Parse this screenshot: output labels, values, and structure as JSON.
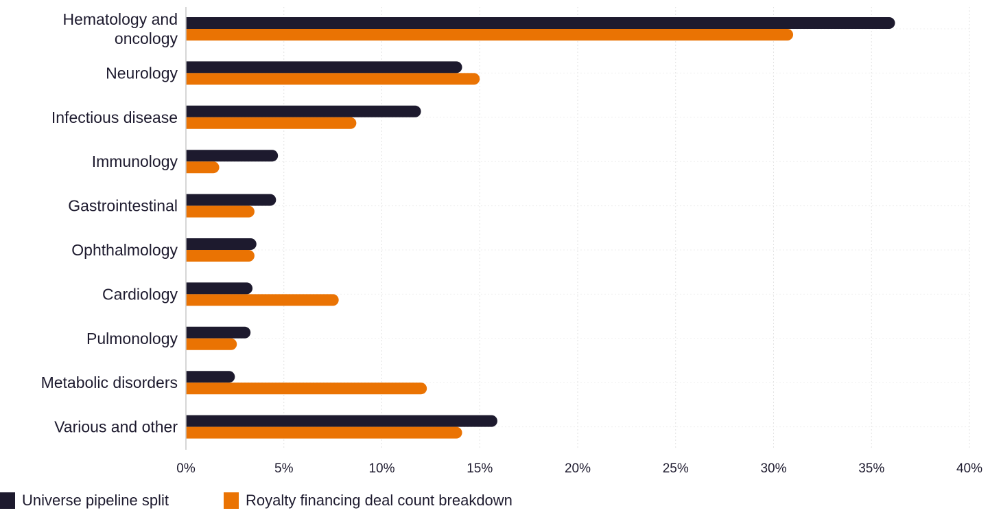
{
  "chart_data": {
    "type": "bar",
    "orientation": "horizontal",
    "categories": [
      [
        "Hematology and",
        "oncology"
      ],
      [
        "Neurology"
      ],
      [
        "Infectious disease"
      ],
      [
        "Immunology"
      ],
      [
        "Gastrointestinal"
      ],
      [
        "Ophthalmology"
      ],
      [
        "Cardiology"
      ],
      [
        "Pulmonology"
      ],
      [
        "Metabolic disorders"
      ],
      [
        "Various and other"
      ]
    ],
    "series": [
      {
        "name": "Universe pipeline split",
        "color": "#1d1a2e",
        "values": [
          36.2,
          14.1,
          12.0,
          4.7,
          4.6,
          3.6,
          3.4,
          3.3,
          2.5,
          15.9
        ]
      },
      {
        "name": "Royalty financing deal count breakdown",
        "color": "#ea7303",
        "values": [
          31.0,
          15.0,
          8.7,
          1.7,
          3.5,
          3.5,
          7.8,
          2.6,
          12.3,
          14.1
        ]
      }
    ],
    "xlim": [
      0,
      40
    ],
    "xticks": [
      0,
      5,
      10,
      15,
      20,
      25,
      30,
      35,
      40
    ],
    "tick_suffix": "%",
    "grid": "dotted vertical",
    "legend_position": "bottom-left",
    "title": "",
    "xlabel": "",
    "ylabel": ""
  }
}
